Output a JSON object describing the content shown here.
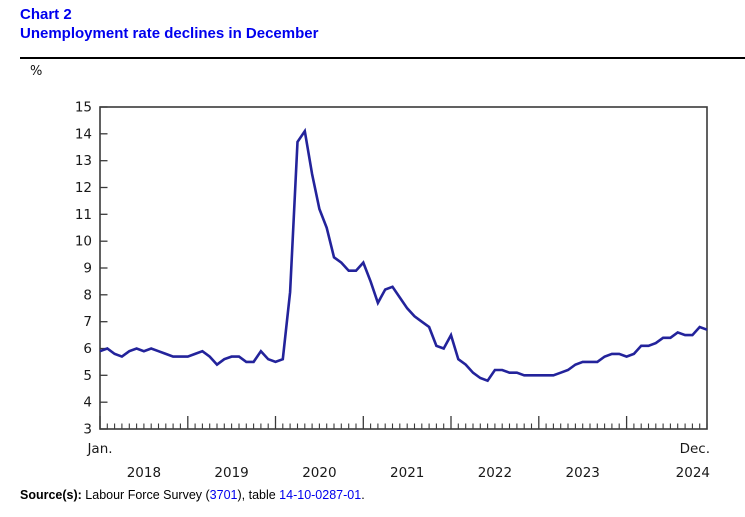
{
  "header": {
    "chart_label": "Chart 2",
    "title": "Unemployment rate declines in December"
  },
  "y_axis_unit": "%",
  "colors": {
    "title_blue": "#0000ee",
    "link_blue": "#0000ee",
    "line_navy": "#23239b",
    "axis_gray": "#3a3a3a"
  },
  "source": {
    "label": "Source(s):",
    "seg1": " Labour Force Survey (",
    "link1": "3701",
    "seg2": "), table ",
    "link2": "14-10-0287-01",
    "seg3": "."
  },
  "chart_data": {
    "type": "line",
    "title": "Unemployment rate declines in December",
    "xlabel": "",
    "ylabel": "%",
    "ylim": [
      3,
      15
    ],
    "yticks": [
      15,
      14,
      13,
      12,
      11,
      10,
      9,
      8,
      7,
      6,
      5,
      4,
      3
    ],
    "grid": false,
    "legend": "none",
    "x_start": "Jan. 2018",
    "x_end": "Dec. 2024",
    "x_first_tick_label": "Jan.",
    "x_last_tick_label": "Dec.",
    "x_year_labels": [
      "2018",
      "2019",
      "2020",
      "2021",
      "2022",
      "2023",
      "2024"
    ],
    "series": [
      {
        "name": "Unemployment rate (%)",
        "values": [
          5.9,
          6.0,
          5.8,
          5.7,
          5.9,
          6.0,
          5.9,
          6.0,
          5.9,
          5.8,
          5.7,
          5.7,
          5.7,
          5.8,
          5.9,
          5.7,
          5.4,
          5.6,
          5.7,
          5.7,
          5.5,
          5.5,
          5.9,
          5.6,
          5.5,
          5.6,
          8.1,
          13.7,
          14.1,
          12.5,
          11.2,
          10.5,
          9.4,
          9.2,
          8.9,
          8.9,
          9.2,
          8.5,
          7.7,
          8.2,
          8.3,
          7.9,
          7.5,
          7.2,
          7.0,
          6.8,
          6.1,
          6.0,
          6.5,
          5.6,
          5.4,
          5.1,
          4.9,
          4.8,
          5.2,
          5.2,
          5.1,
          5.1,
          5.0,
          5.0,
          5.0,
          5.0,
          5.0,
          5.1,
          5.2,
          5.4,
          5.5,
          5.5,
          5.5,
          5.7,
          5.8,
          5.8,
          5.7,
          5.8,
          6.1,
          6.1,
          6.2,
          6.4,
          6.4,
          6.6,
          6.5,
          6.5,
          6.8,
          6.7
        ]
      }
    ]
  }
}
